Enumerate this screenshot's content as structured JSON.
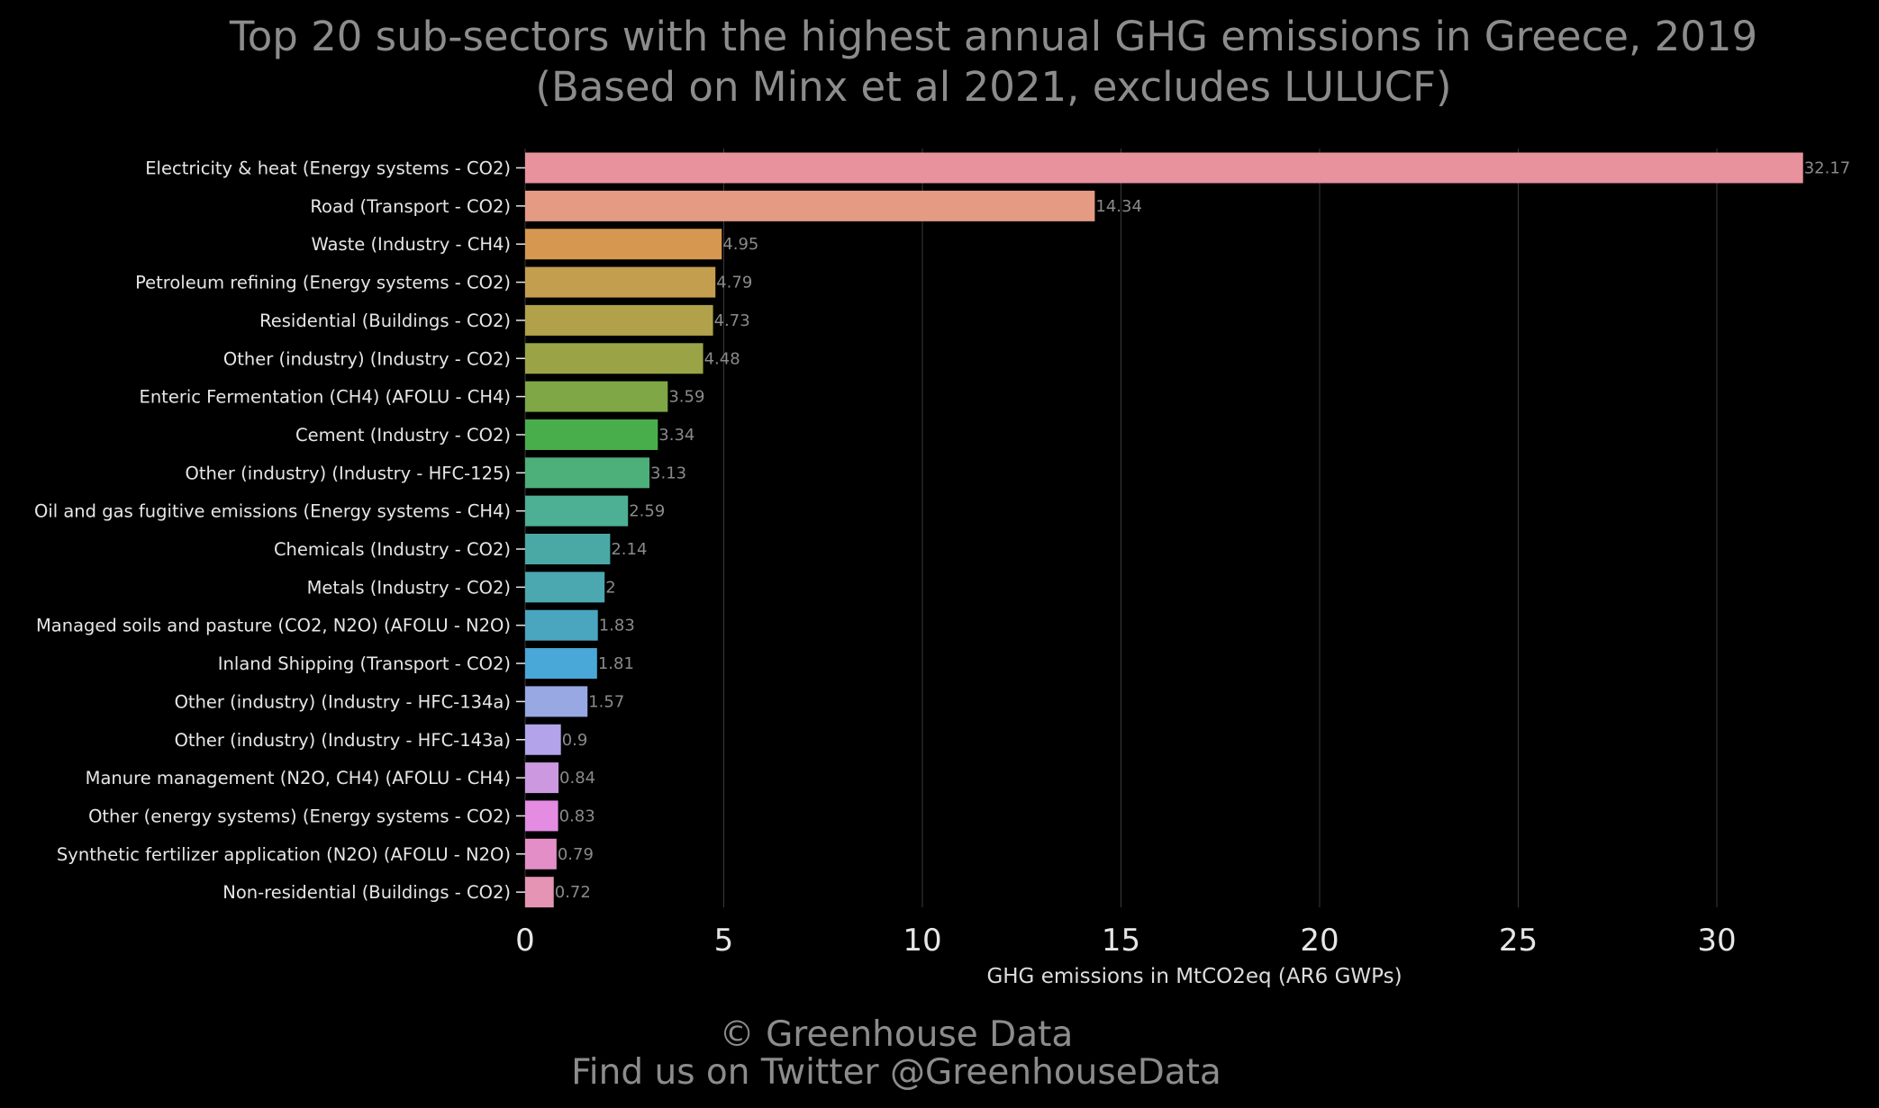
{
  "chart_data": {
    "type": "bar",
    "orientation": "horizontal",
    "title": "Top 20 sub-sectors with the highest annual GHG emissions in Greece, 2019",
    "subtitle": "(Based on Minx et al 2021, excludes LULUCF)",
    "xlabel": "GHG emissions in MtCO2eq (AR6 GWPs)",
    "ylabel": "",
    "xlim": [
      0,
      33
    ],
    "xticks": [
      0,
      5,
      10,
      15,
      20,
      25,
      30
    ],
    "grid": "vertical",
    "categories": [
      "Electricity & heat (Energy systems - CO2)",
      "Road (Transport - CO2)",
      "Waste (Industry - CH4)",
      "Petroleum refining (Energy systems - CO2)",
      "Residential (Buildings - CO2)",
      "Other (industry) (Industry - CO2)",
      "Enteric Fermentation (CH4) (AFOLU - CH4)",
      "Cement (Industry - CO2)",
      "Other (industry) (Industry - HFC-125)",
      "Oil and gas fugitive emissions (Energy systems - CH4)",
      "Chemicals (Industry - CO2)",
      "Metals (Industry - CO2)",
      "Managed soils and pasture (CO2, N2O) (AFOLU - N2O)",
      "Inland Shipping (Transport - CO2)",
      "Other (industry) (Industry - HFC-134a)",
      "Other (industry) (Industry - HFC-143a)",
      "Manure management (N2O, CH4) (AFOLU - CH4)",
      "Other (energy systems) (Energy systems - CO2)",
      "Synthetic fertilizer application (N2O) (AFOLU - N2O)",
      "Non-residential (Buildings - CO2)"
    ],
    "values": [
      32.17,
      14.34,
      4.95,
      4.79,
      4.73,
      4.48,
      3.59,
      3.34,
      3.13,
      2.59,
      2.14,
      2,
      1.83,
      1.81,
      1.57,
      0.9,
      0.84,
      0.83,
      0.79,
      0.72
    ],
    "value_labels": [
      "32.17",
      "14.34",
      "4.95",
      "4.79",
      "4.73",
      "4.48",
      "3.59",
      "3.34",
      "3.13",
      "2.59",
      "2.14",
      "2",
      "1.83",
      "1.81",
      "1.57",
      "0.9",
      "0.84",
      "0.83",
      "0.79",
      "0.72"
    ],
    "colors": [
      "#e8929e",
      "#e59a84",
      "#d69750",
      "#c49e4f",
      "#b0a14a",
      "#9aa346",
      "#7fa745",
      "#48ae4c",
      "#4daf79",
      "#4daf93",
      "#4aa9a4",
      "#4ba8b0",
      "#4aa6bf",
      "#4aa8d8",
      "#97a8e3",
      "#b2a3ea",
      "#cc99e0",
      "#e38ce2",
      "#e48ec8",
      "#e594b3"
    ]
  },
  "footer": {
    "line1": "© Greenhouse Data",
    "line2": "Find us on Twitter @GreenhouseData"
  }
}
